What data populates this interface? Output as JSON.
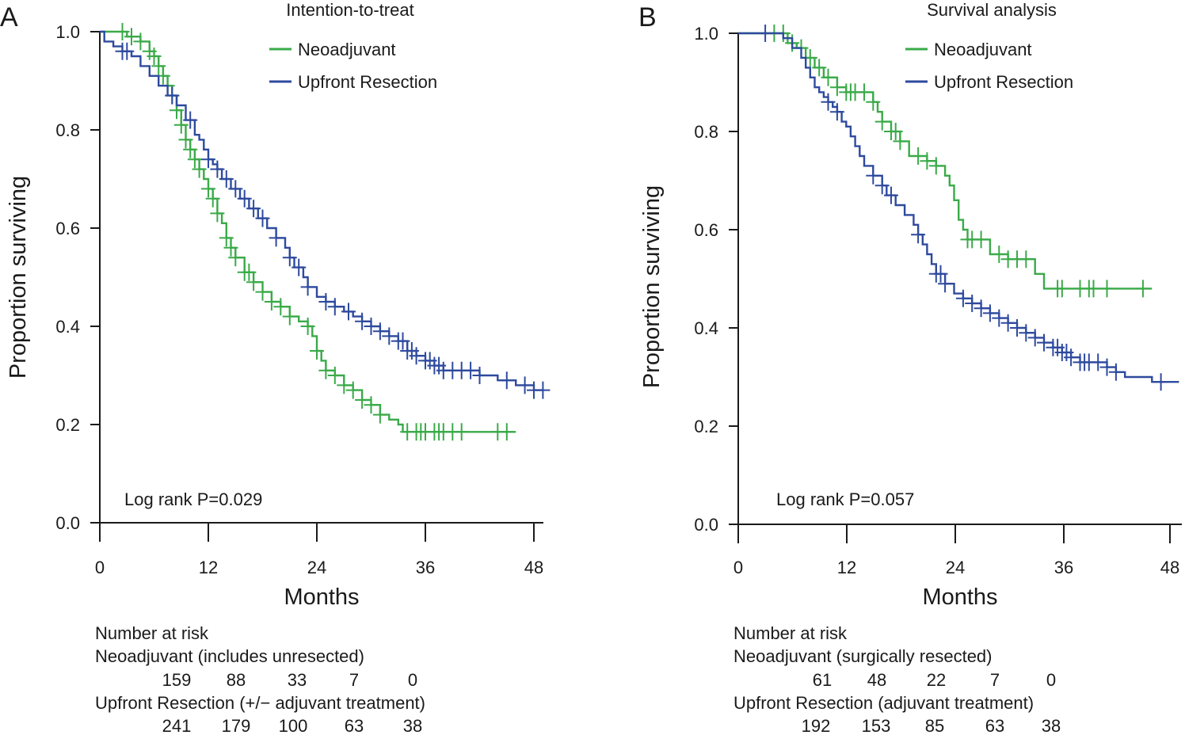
{
  "chart_data": [
    {
      "panel_label": "A",
      "type": "line",
      "subtype": "kaplan-meier",
      "title": "Intention-to-treat",
      "xlabel": "Months",
      "ylabel": "Proportion surviving",
      "xlim": [
        0,
        48
      ],
      "ylim": [
        0,
        1.0
      ],
      "xticks": [
        "0",
        "12",
        "24",
        "36",
        "48"
      ],
      "yticks": [
        "0.0",
        "0.2",
        "0.4",
        "0.6",
        "0.8",
        "1.0"
      ],
      "annotation": "Log rank P=0.029",
      "series": [
        {
          "name": "Neoadjuvant",
          "color": "#3aaa48",
          "steps": [
            [
              0,
              1.0
            ],
            [
              2,
              1.0
            ],
            [
              3,
              0.99
            ],
            [
              4.5,
              0.98
            ],
            [
              5.5,
              0.96
            ],
            [
              6,
              0.95
            ],
            [
              6.5,
              0.93
            ],
            [
              7,
              0.91
            ],
            [
              7.5,
              0.89
            ],
            [
              8,
              0.87
            ],
            [
              8.5,
              0.84
            ],
            [
              9,
              0.81
            ],
            [
              9.5,
              0.78
            ],
            [
              10,
              0.76
            ],
            [
              10.5,
              0.74
            ],
            [
              11,
              0.72
            ],
            [
              11.5,
              0.7
            ],
            [
              12,
              0.68
            ],
            [
              12.5,
              0.66
            ],
            [
              13,
              0.63
            ],
            [
              13.5,
              0.61
            ],
            [
              14,
              0.58
            ],
            [
              14.5,
              0.56
            ],
            [
              15,
              0.54
            ],
            [
              16,
              0.51
            ],
            [
              17,
              0.49
            ],
            [
              18,
              0.47
            ],
            [
              19,
              0.45
            ],
            [
              20,
              0.44
            ],
            [
              21,
              0.42
            ],
            [
              22,
              0.41
            ],
            [
              23,
              0.4
            ],
            [
              23.5,
              0.38
            ],
            [
              24,
              0.35
            ],
            [
              24.5,
              0.33
            ],
            [
              25,
              0.31
            ],
            [
              26,
              0.3
            ],
            [
              27,
              0.28
            ],
            [
              28,
              0.27
            ],
            [
              29,
              0.25
            ],
            [
              30,
              0.24
            ],
            [
              31,
              0.22
            ],
            [
              32,
              0.21
            ],
            [
              33,
              0.2
            ],
            [
              33.5,
              0.185
            ],
            [
              46,
              0.185
            ]
          ],
          "censor_times": [
            2.5,
            3.5,
            4.5,
            5.5,
            6,
            6.5,
            7,
            7.5,
            8,
            8.5,
            9,
            9.5,
            10,
            10.5,
            11,
            12,
            12.5,
            13,
            14,
            14.5,
            15,
            16,
            16.5,
            17,
            18,
            19,
            20,
            21,
            23,
            24,
            25,
            26,
            27,
            28,
            29,
            30,
            31,
            34,
            35,
            35.5,
            36,
            37,
            37.5,
            38,
            39,
            40,
            44,
            45
          ]
        },
        {
          "name": "Upfront Resection",
          "color": "#2e4a9e",
          "steps": [
            [
              0,
              1.0
            ],
            [
              0.5,
              0.98
            ],
            [
              1.5,
              0.97
            ],
            [
              2.5,
              0.96
            ],
            [
              3.5,
              0.95
            ],
            [
              4.5,
              0.93
            ],
            [
              5.5,
              0.91
            ],
            [
              6.5,
              0.89
            ],
            [
              7.5,
              0.87
            ],
            [
              8.5,
              0.85
            ],
            [
              9.5,
              0.82
            ],
            [
              10.5,
              0.79
            ],
            [
              11,
              0.78
            ],
            [
              11.5,
              0.76
            ],
            [
              12,
              0.74
            ],
            [
              12.5,
              0.73
            ],
            [
              13,
              0.72
            ],
            [
              13.5,
              0.7
            ],
            [
              14.5,
              0.68
            ],
            [
              15.5,
              0.66
            ],
            [
              16.5,
              0.64
            ],
            [
              17.5,
              0.62
            ],
            [
              18.5,
              0.6
            ],
            [
              19.5,
              0.58
            ],
            [
              20.5,
              0.56
            ],
            [
              21,
              0.54
            ],
            [
              21.5,
              0.52
            ],
            [
              22.5,
              0.5
            ],
            [
              23,
              0.48
            ],
            [
              24,
              0.46
            ],
            [
              25,
              0.45
            ],
            [
              26,
              0.44
            ],
            [
              27,
              0.43
            ],
            [
              28,
              0.42
            ],
            [
              29,
              0.41
            ],
            [
              30,
              0.4
            ],
            [
              31,
              0.39
            ],
            [
              32,
              0.38
            ],
            [
              33,
              0.37
            ],
            [
              34,
              0.35
            ],
            [
              35,
              0.34
            ],
            [
              36,
              0.33
            ],
            [
              37,
              0.32
            ],
            [
              38,
              0.31
            ],
            [
              42,
              0.3
            ],
            [
              44,
              0.29
            ],
            [
              46,
              0.28
            ],
            [
              48,
              0.27
            ],
            [
              49,
              0.27
            ]
          ],
          "censor_times": [
            2.5,
            3,
            8,
            10,
            12,
            13,
            14,
            15,
            16,
            17,
            18,
            19.5,
            21,
            22,
            23,
            25,
            26,
            27.5,
            29,
            30,
            31,
            32,
            33,
            33.5,
            34,
            34.5,
            35,
            36,
            36.5,
            37,
            37.5,
            38,
            39,
            40,
            41,
            42,
            45,
            47,
            48,
            49
          ]
        }
      ],
      "risk_table": {
        "title": "Number at risk",
        "groups": [
          {
            "label": "Neoadjuvant (includes unresected)",
            "counts": [
              "159",
              "88",
              "33",
              "7",
              "0"
            ]
          },
          {
            "label": "Upfront Resection (+/− adjuvant treatment)",
            "counts": [
              "241",
              "179",
              "100",
              "63",
              "38"
            ]
          }
        ]
      }
    },
    {
      "panel_label": "B",
      "type": "line",
      "subtype": "kaplan-meier",
      "title": "Survival analysis",
      "xlabel": "Months",
      "ylabel": "Proportion surviving",
      "xlim": [
        0,
        48
      ],
      "ylim": [
        0,
        1.0
      ],
      "xticks": [
        "0",
        "12",
        "24",
        "36",
        "48"
      ],
      "yticks": [
        "0.0",
        "0.2",
        "0.4",
        "0.6",
        "0.8",
        "1.0"
      ],
      "annotation": "Log rank P=0.057",
      "series": [
        {
          "name": "Neoadjuvant",
          "color": "#3aaa48",
          "steps": [
            [
              0,
              1.0
            ],
            [
              5.5,
              0.98
            ],
            [
              6.5,
              0.97
            ],
            [
              7.5,
              0.95
            ],
            [
              8.5,
              0.93
            ],
            [
              9.5,
              0.91
            ],
            [
              11,
              0.89
            ],
            [
              12,
              0.88
            ],
            [
              15,
              0.86
            ],
            [
              15.5,
              0.84
            ],
            [
              16,
              0.82
            ],
            [
              17,
              0.8
            ],
            [
              18,
              0.78
            ],
            [
              19,
              0.75
            ],
            [
              21,
              0.74
            ],
            [
              22,
              0.73
            ],
            [
              23,
              0.71
            ],
            [
              23.5,
              0.69
            ],
            [
              24,
              0.66
            ],
            [
              24.5,
              0.62
            ],
            [
              25,
              0.6
            ],
            [
              25.5,
              0.58
            ],
            [
              28,
              0.55
            ],
            [
              30,
              0.54
            ],
            [
              32,
              0.54
            ],
            [
              33,
              0.51
            ],
            [
              34,
              0.48
            ],
            [
              46,
              0.48
            ]
          ],
          "censor_times": [
            4,
            5,
            6,
            7,
            8,
            9,
            10,
            11,
            12,
            12.5,
            13,
            14,
            15,
            16,
            17,
            17.5,
            18,
            20,
            21,
            22,
            25.5,
            26,
            27,
            29,
            30,
            31,
            32,
            35.5,
            36,
            38,
            39,
            39.5,
            41,
            45
          ]
        },
        {
          "name": "Upfront Resection",
          "color": "#2e4a9e",
          "steps": [
            [
              0,
              1.0
            ],
            [
              3,
              1.0
            ],
            [
              5,
              0.99
            ],
            [
              6,
              0.97
            ],
            [
              7,
              0.95
            ],
            [
              7.5,
              0.93
            ],
            [
              8,
              0.91
            ],
            [
              8.5,
              0.89
            ],
            [
              9,
              0.88
            ],
            [
              9.5,
              0.87
            ],
            [
              10,
              0.86
            ],
            [
              10.5,
              0.85
            ],
            [
              11,
              0.84
            ],
            [
              11.5,
              0.82
            ],
            [
              12,
              0.81
            ],
            [
              12.5,
              0.79
            ],
            [
              13,
              0.77
            ],
            [
              13.5,
              0.75
            ],
            [
              14,
              0.73
            ],
            [
              15,
              0.71
            ],
            [
              16,
              0.69
            ],
            [
              16.5,
              0.67
            ],
            [
              17.5,
              0.65
            ],
            [
              18.5,
              0.63
            ],
            [
              19.5,
              0.61
            ],
            [
              20,
              0.59
            ],
            [
              20.5,
              0.57
            ],
            [
              21,
              0.55
            ],
            [
              21.5,
              0.53
            ],
            [
              22,
              0.51
            ],
            [
              23,
              0.49
            ],
            [
              24,
              0.47
            ],
            [
              25,
              0.46
            ],
            [
              26,
              0.45
            ],
            [
              27,
              0.44
            ],
            [
              28,
              0.43
            ],
            [
              29,
              0.42
            ],
            [
              30,
              0.41
            ],
            [
              31,
              0.4
            ],
            [
              32,
              0.39
            ],
            [
              33,
              0.38
            ],
            [
              34,
              0.37
            ],
            [
              35,
              0.36
            ],
            [
              36,
              0.35
            ],
            [
              37,
              0.34
            ],
            [
              38,
              0.33
            ],
            [
              41,
              0.32
            ],
            [
              42,
              0.31
            ],
            [
              43,
              0.3
            ],
            [
              46,
              0.29
            ],
            [
              49,
              0.29
            ]
          ],
          "censor_times": [
            3,
            10,
            11,
            15,
            16,
            17,
            20,
            22,
            22.5,
            23,
            25,
            26,
            27,
            28,
            29,
            30,
            31,
            32,
            33,
            34,
            35,
            35.5,
            36,
            36.5,
            37,
            38,
            38.5,
            39,
            40,
            41,
            42,
            47
          ]
        }
      ],
      "risk_table": {
        "title": "Number at risk",
        "groups": [
          {
            "label": "Neoadjuvant (surgically resected)",
            "counts": [
              "61",
              "48",
              "22",
              "7",
              "0"
            ]
          },
          {
            "label": "Upfront Resection (adjuvant treatment)",
            "counts": [
              "192",
              "153",
              "85",
              "63",
              "38"
            ]
          }
        ]
      }
    }
  ]
}
